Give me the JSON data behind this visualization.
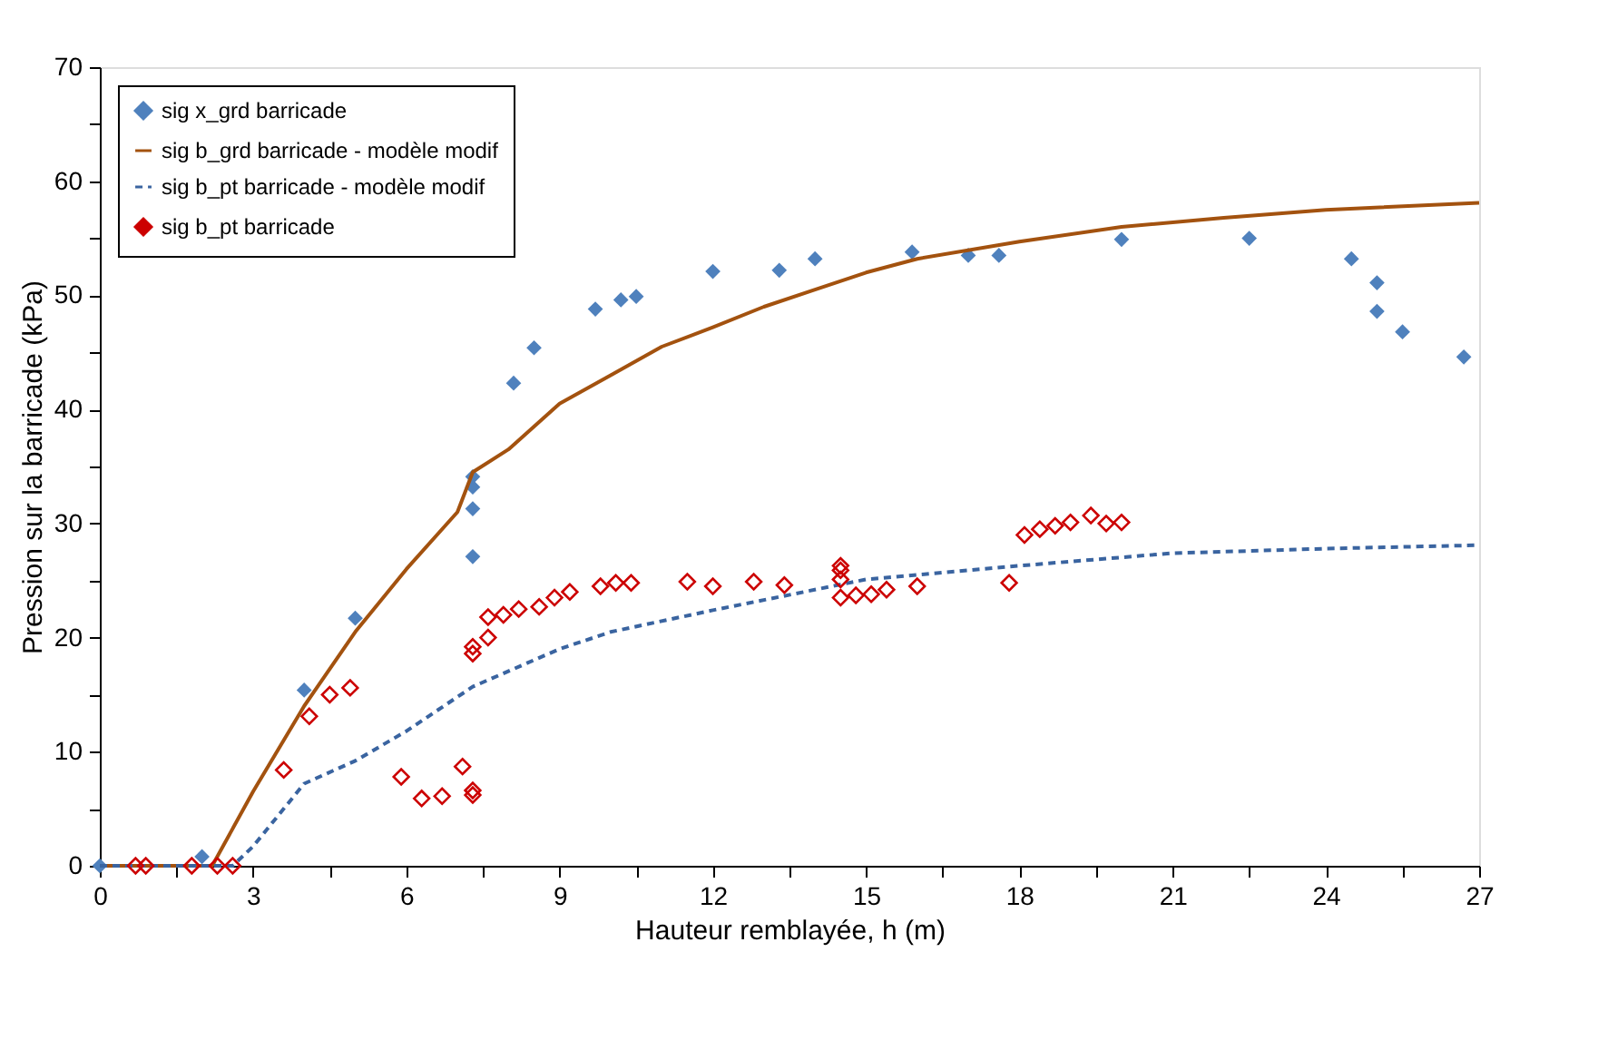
{
  "chart_data": {
    "type": "scatter",
    "xlabel": "Hauteur remblayée, h (m)",
    "ylabel": "Pression sur la barricade  (kPa)",
    "xlim": [
      0,
      27
    ],
    "ylim": [
      0,
      70
    ],
    "xticks": [
      0,
      {
        "value": 1.5,
        "label": null
      },
      3,
      {
        "value": 4.5,
        "label": null
      },
      6,
      {
        "value": 7.5,
        "label": null
      },
      9,
      {
        "value": 10.5,
        "label": null
      },
      12,
      {
        "value": 13.5,
        "label": null
      },
      15,
      {
        "value": 16.5,
        "label": null
      },
      18,
      {
        "value": 19.5,
        "label": null
      },
      21,
      {
        "value": 22.5,
        "label": null
      },
      24,
      {
        "value": 25.5,
        "label": null
      },
      27
    ],
    "yticks": [
      0,
      {
        "value": 5,
        "label": null
      },
      10,
      {
        "value": 15,
        "label": null
      },
      20,
      {
        "value": 25,
        "label": null
      },
      30,
      {
        "value": 35,
        "label": null
      },
      40,
      {
        "value": 45,
        "label": null
      },
      50,
      {
        "value": 55,
        "label": null
      },
      60,
      {
        "value": 65,
        "label": null
      },
      70
    ],
    "grid": false,
    "legend": "top left",
    "series": [
      {
        "name": "sig x_grd barricade",
        "marker": "diamond",
        "color": "#4f81bd",
        "x": [
          0,
          2.0,
          4.0,
          5.0,
          7.3,
          7.3,
          7.3,
          7.3,
          8.1,
          8.5,
          9.7,
          10.2,
          10.5,
          12.0,
          13.3,
          14.0,
          15.9,
          17.0,
          17.6,
          20.0,
          22.5,
          24.5,
          25.0,
          25.0,
          25.5,
          26.7
        ],
        "values": [
          0,
          0.8,
          15.4,
          21.7,
          27.1,
          31.3,
          33.2,
          34.1,
          42.3,
          45.4,
          48.8,
          49.6,
          49.9,
          52.1,
          52.2,
          53.2,
          53.8,
          53.5,
          53.5,
          54.9,
          55.0,
          53.2,
          51.1,
          48.6,
          46.8,
          44.6
        ]
      },
      {
        "name": "sig b_grd barricade - modèle modif",
        "type": "line",
        "line_style": "solid",
        "color": "#a3520f",
        "x": [
          0,
          2.2,
          3,
          4,
          5,
          6,
          7,
          7.3,
          8,
          9,
          10,
          11,
          12,
          13,
          14,
          15,
          16,
          18,
          20,
          22,
          24,
          27
        ],
        "values": [
          0,
          0,
          6.5,
          14,
          20.5,
          26,
          31,
          34.5,
          36.5,
          40.5,
          43,
          45.5,
          47.2,
          49,
          50.5,
          52,
          53.2,
          54.7,
          56,
          56.8,
          57.5,
          58.1
        ]
      },
      {
        "name": "sig b_pt barricade - modèle modif",
        "type": "line",
        "line_style": "dashed",
        "color": "#3a64a0",
        "x": [
          0,
          2.6,
          3,
          4,
          5,
          6,
          7.3,
          9,
          10,
          12,
          15,
          18,
          21,
          24,
          27
        ],
        "values": [
          0,
          0,
          1.7,
          7.2,
          9.2,
          11.8,
          15.7,
          19,
          20.5,
          22.4,
          25.1,
          26.3,
          27.4,
          27.8,
          28.1
        ]
      },
      {
        "name": "sig b_pt barricade",
        "marker": "diamond",
        "color": "#cc0000",
        "x": [
          0.7,
          0.9,
          1.8,
          2.3,
          2.6,
          3.6,
          4.1,
          4.5,
          4.9,
          5.9,
          6.3,
          6.7,
          7.1,
          7.3,
          7.3,
          7.3,
          7.3,
          7.6,
          7.6,
          7.9,
          8.2,
          8.6,
          8.9,
          9.2,
          9.8,
          10.1,
          10.4,
          11.5,
          12.0,
          12.8,
          13.4,
          14.5,
          14.5,
          14.5,
          14.5,
          14.8,
          15.1,
          15.4,
          16.0,
          17.8,
          18.1,
          18.4,
          18.7,
          19.0,
          19.4,
          19.7,
          20.0
        ],
        "values": [
          0,
          0,
          0,
          0,
          0,
          8.4,
          13.1,
          15.0,
          15.6,
          7.8,
          5.9,
          6.1,
          8.7,
          6.6,
          6.2,
          18.6,
          19.2,
          20.0,
          21.8,
          22.0,
          22.5,
          22.7,
          23.5,
          24.0,
          24.5,
          24.8,
          24.8,
          24.9,
          24.5,
          24.9,
          24.6,
          26.3,
          25.9,
          25.1,
          23.5,
          23.7,
          23.8,
          24.2,
          24.5,
          24.8,
          29.0,
          29.5,
          29.8,
          30.1,
          30.7,
          30.0,
          30.1
        ]
      }
    ]
  }
}
